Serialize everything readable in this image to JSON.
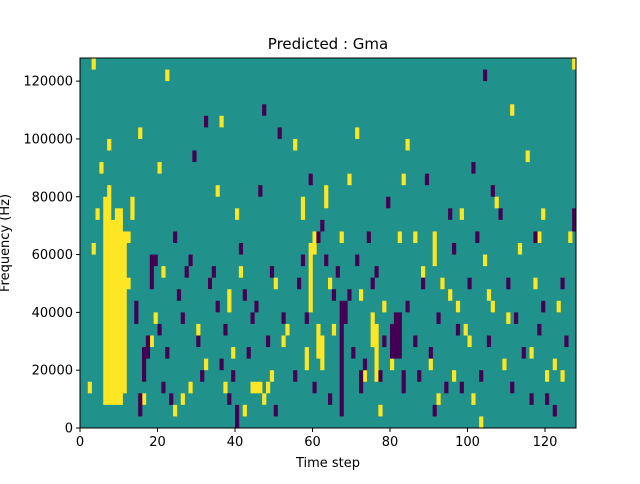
{
  "chart_data": {
    "type": "heatmap",
    "title": "Predicted : Gma",
    "xlabel": "Time step",
    "ylabel": "Frequency (Hz)",
    "xlim": [
      0,
      128
    ],
    "ylim": [
      0,
      128000
    ],
    "x_ticks": [
      0,
      20,
      40,
      60,
      80,
      100,
      120
    ],
    "y_ticks": [
      0,
      20000,
      40000,
      60000,
      80000,
      100000,
      120000
    ],
    "x_tick_labels": [
      "0",
      "20",
      "40",
      "60",
      "80",
      "100",
      "120"
    ],
    "y_tick_labels": [
      "0",
      "20000",
      "40000",
      "60000",
      "80000",
      "100000",
      "120000"
    ],
    "grid": false,
    "colors": {
      "background": "#21918c",
      "high": "#fde725",
      "low": "#440154"
    },
    "cell_width": 1,
    "cell_height": 4000,
    "high_cells": [
      [
        6,
        8000,
        72000
      ],
      [
        7,
        8000,
        76000
      ],
      [
        8,
        8000,
        64000
      ],
      [
        9,
        8000,
        68000
      ],
      [
        10,
        8000,
        68000
      ],
      [
        11,
        12000,
        56000
      ],
      [
        2,
        12000,
        4000
      ],
      [
        3,
        60000,
        4000
      ],
      [
        4,
        72000,
        4000
      ],
      [
        5,
        88000,
        4000
      ],
      [
        7,
        96000,
        4000
      ],
      [
        3,
        124000,
        4000
      ],
      [
        12,
        48000,
        4000
      ],
      [
        12,
        64000,
        4000
      ],
      [
        13,
        72000,
        8000
      ],
      [
        15,
        100000,
        4000
      ],
      [
        16,
        8000,
        4000
      ],
      [
        18,
        28000,
        4000
      ],
      [
        19,
        36000,
        4000
      ],
      [
        20,
        88000,
        4000
      ],
      [
        21,
        52000,
        4000
      ],
      [
        22,
        120000,
        4000
      ],
      [
        24,
        4000,
        4000
      ],
      [
        26,
        8000,
        4000
      ],
      [
        28,
        12000,
        4000
      ],
      [
        30,
        32000,
        4000
      ],
      [
        32,
        20000,
        4000
      ],
      [
        33,
        48000,
        4000
      ],
      [
        35,
        80000,
        4000
      ],
      [
        36,
        104000,
        4000
      ],
      [
        37,
        12000,
        4000
      ],
      [
        38,
        40000,
        8000
      ],
      [
        39,
        24000,
        4000
      ],
      [
        40,
        72000,
        4000
      ],
      [
        41,
        52000,
        4000
      ],
      [
        42,
        4000,
        4000
      ],
      [
        44,
        12000,
        4000
      ],
      [
        45,
        12000,
        4000
      ],
      [
        46,
        12000,
        4000
      ],
      [
        47,
        8000,
        4000
      ],
      [
        48,
        12000,
        4000
      ],
      [
        49,
        16000,
        4000
      ],
      [
        50,
        48000,
        4000
      ],
      [
        52,
        28000,
        4000
      ],
      [
        53,
        32000,
        4000
      ],
      [
        55,
        96000,
        4000
      ],
      [
        57,
        72000,
        8000
      ],
      [
        58,
        20000,
        8000
      ],
      [
        59,
        40000,
        24000
      ],
      [
        60,
        60000,
        8000
      ],
      [
        61,
        24000,
        12000
      ],
      [
        62,
        20000,
        12000
      ],
      [
        63,
        76000,
        8000
      ],
      [
        64,
        48000,
        4000
      ],
      [
        65,
        32000,
        4000
      ],
      [
        67,
        64000,
        4000
      ],
      [
        69,
        84000,
        4000
      ],
      [
        71,
        100000,
        4000
      ],
      [
        72,
        44000,
        4000
      ],
      [
        73,
        16000,
        4000
      ],
      [
        75,
        28000,
        12000
      ],
      [
        76,
        16000,
        20000
      ],
      [
        77,
        4000,
        4000
      ],
      [
        78,
        40000,
        4000
      ],
      [
        80,
        20000,
        4000
      ],
      [
        82,
        64000,
        4000
      ],
      [
        83,
        84000,
        4000
      ],
      [
        84,
        96000,
        4000
      ],
      [
        86,
        64000,
        4000
      ],
      [
        88,
        52000,
        4000
      ],
      [
        90,
        20000,
        4000
      ],
      [
        91,
        56000,
        12000
      ],
      [
        92,
        8000,
        4000
      ],
      [
        93,
        48000,
        4000
      ],
      [
        95,
        44000,
        4000
      ],
      [
        96,
        16000,
        4000
      ],
      [
        97,
        40000,
        4000
      ],
      [
        98,
        72000,
        4000
      ],
      [
        99,
        32000,
        4000
      ],
      [
        100,
        28000,
        4000
      ],
      [
        101,
        8000,
        4000
      ],
      [
        103,
        0,
        4000
      ],
      [
        104,
        56000,
        4000
      ],
      [
        105,
        44000,
        4000
      ],
      [
        106,
        40000,
        4000
      ],
      [
        107,
        76000,
        4000
      ],
      [
        109,
        20000,
        4000
      ],
      [
        110,
        36000,
        4000
      ],
      [
        111,
        108000,
        4000
      ],
      [
        113,
        60000,
        4000
      ],
      [
        115,
        92000,
        4000
      ],
      [
        116,
        24000,
        4000
      ],
      [
        117,
        48000,
        4000
      ],
      [
        118,
        64000,
        4000
      ],
      [
        119,
        72000,
        4000
      ],
      [
        120,
        16000,
        4000
      ],
      [
        122,
        20000,
        4000
      ],
      [
        123,
        40000,
        4000
      ],
      [
        124,
        16000,
        4000
      ],
      [
        126,
        64000,
        4000
      ],
      [
        127,
        124000,
        4000
      ]
    ],
    "low_cells": [
      [
        14,
        36000,
        8000
      ],
      [
        15,
        4000,
        8000
      ],
      [
        16,
        16000,
        12000
      ],
      [
        17,
        24000,
        8000
      ],
      [
        18,
        48000,
        12000
      ],
      [
        19,
        56000,
        4000
      ],
      [
        20,
        32000,
        4000
      ],
      [
        21,
        12000,
        4000
      ],
      [
        22,
        24000,
        4000
      ],
      [
        23,
        8000,
        4000
      ],
      [
        24,
        64000,
        4000
      ],
      [
        25,
        44000,
        4000
      ],
      [
        26,
        36000,
        4000
      ],
      [
        27,
        52000,
        4000
      ],
      [
        28,
        56000,
        4000
      ],
      [
        29,
        92000,
        4000
      ],
      [
        30,
        28000,
        4000
      ],
      [
        31,
        16000,
        4000
      ],
      [
        32,
        104000,
        4000
      ],
      [
        33,
        48000,
        4000
      ],
      [
        34,
        52000,
        4000
      ],
      [
        35,
        40000,
        4000
      ],
      [
        36,
        20000,
        4000
      ],
      [
        37,
        32000,
        4000
      ],
      [
        38,
        8000,
        4000
      ],
      [
        39,
        16000,
        4000
      ],
      [
        40,
        0,
        8000
      ],
      [
        41,
        60000,
        4000
      ],
      [
        42,
        44000,
        4000
      ],
      [
        43,
        24000,
        4000
      ],
      [
        44,
        36000,
        4000
      ],
      [
        45,
        40000,
        4000
      ],
      [
        46,
        80000,
        4000
      ],
      [
        47,
        108000,
        4000
      ],
      [
        48,
        28000,
        4000
      ],
      [
        49,
        52000,
        4000
      ],
      [
        50,
        4000,
        4000
      ],
      [
        51,
        100000,
        4000
      ],
      [
        52,
        36000,
        4000
      ],
      [
        55,
        16000,
        4000
      ],
      [
        56,
        48000,
        4000
      ],
      [
        57,
        56000,
        4000
      ],
      [
        58,
        36000,
        4000
      ],
      [
        59,
        84000,
        4000
      ],
      [
        60,
        12000,
        4000
      ],
      [
        61,
        64000,
        4000
      ],
      [
        62,
        68000,
        4000
      ],
      [
        63,
        56000,
        4000
      ],
      [
        64,
        8000,
        4000
      ],
      [
        65,
        44000,
        4000
      ],
      [
        66,
        52000,
        4000
      ],
      [
        67,
        4000,
        40000
      ],
      [
        68,
        36000,
        8000
      ],
      [
        69,
        44000,
        4000
      ],
      [
        70,
        24000,
        4000
      ],
      [
        71,
        56000,
        4000
      ],
      [
        72,
        12000,
        8000
      ],
      [
        73,
        20000,
        4000
      ],
      [
        74,
        64000,
        4000
      ],
      [
        75,
        48000,
        4000
      ],
      [
        76,
        52000,
        4000
      ],
      [
        77,
        16000,
        4000
      ],
      [
        78,
        28000,
        4000
      ],
      [
        79,
        76000,
        4000
      ],
      [
        80,
        24000,
        12000
      ],
      [
        81,
        24000,
        16000
      ],
      [
        82,
        24000,
        16000
      ],
      [
        83,
        12000,
        8000
      ],
      [
        84,
        40000,
        4000
      ],
      [
        86,
        28000,
        4000
      ],
      [
        87,
        16000,
        4000
      ],
      [
        88,
        48000,
        4000
      ],
      [
        89,
        84000,
        4000
      ],
      [
        90,
        24000,
        4000
      ],
      [
        91,
        4000,
        4000
      ],
      [
        92,
        36000,
        4000
      ],
      [
        94,
        12000,
        4000
      ],
      [
        95,
        72000,
        4000
      ],
      [
        96,
        60000,
        4000
      ],
      [
        97,
        32000,
        4000
      ],
      [
        98,
        12000,
        4000
      ],
      [
        100,
        48000,
        4000
      ],
      [
        101,
        88000,
        4000
      ],
      [
        102,
        64000,
        4000
      ],
      [
        103,
        16000,
        4000
      ],
      [
        104,
        120000,
        4000
      ],
      [
        105,
        28000,
        4000
      ],
      [
        106,
        80000,
        4000
      ],
      [
        108,
        72000,
        4000
      ],
      [
        110,
        48000,
        4000
      ],
      [
        111,
        12000,
        4000
      ],
      [
        112,
        36000,
        4000
      ],
      [
        114,
        24000,
        4000
      ],
      [
        116,
        8000,
        4000
      ],
      [
        117,
        64000,
        4000
      ],
      [
        118,
        32000,
        4000
      ],
      [
        119,
        40000,
        4000
      ],
      [
        120,
        8000,
        4000
      ],
      [
        122,
        4000,
        4000
      ],
      [
        124,
        48000,
        4000
      ],
      [
        125,
        28000,
        4000
      ],
      [
        127,
        68000,
        8000
      ]
    ]
  }
}
